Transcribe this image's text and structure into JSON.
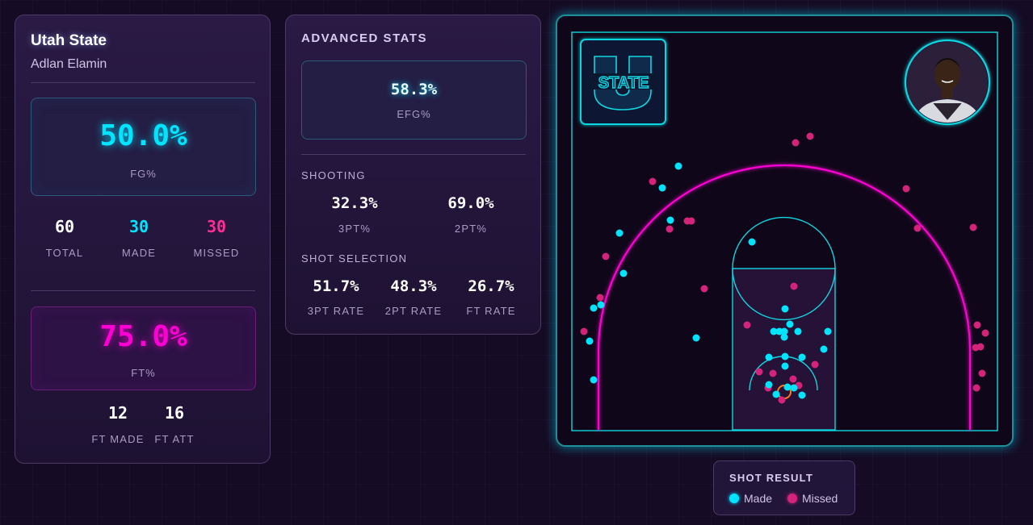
{
  "team": "Utah State",
  "player": "Adlan Elamin",
  "fg": {
    "value": "50.0%",
    "label": "FG%"
  },
  "totals": [
    {
      "value": "60",
      "label": "TOTAL",
      "color": "#ffffff"
    },
    {
      "value": "30",
      "label": "MADE",
      "color": "#00e5ff"
    },
    {
      "value": "30",
      "label": "MISSED",
      "color": "#ff2d95"
    }
  ],
  "ft": {
    "value": "75.0%",
    "label": "FT%"
  },
  "ft_counts": [
    {
      "value": "12",
      "label": "FT MADE"
    },
    {
      "value": "16",
      "label": "FT ATT"
    }
  ],
  "advanced": {
    "title": "ADVANCED STATS",
    "efg": {
      "value": "58.3%",
      "label": "EFG%"
    },
    "shooting_title": "SHOOTING",
    "shooting": [
      {
        "value": "32.3%",
        "label": "3PT%"
      },
      {
        "value": "69.0%",
        "label": "2PT%"
      }
    ],
    "selection_title": "SHOT SELECTION",
    "selection": [
      {
        "value": "51.7%",
        "label": "3PT RATE"
      },
      {
        "value": "48.3%",
        "label": "2PT RATE"
      },
      {
        "value": "26.7%",
        "label": "FT RATE"
      }
    ]
  },
  "court": {
    "logo": {
      "icon": "utah-state-logo",
      "text": "STATE"
    },
    "avatar_icon": "player-headshot"
  },
  "legend": {
    "title": "SHOT RESULT",
    "items": [
      {
        "label": "Made",
        "color": "#00e5ff"
      },
      {
        "label": "Missed",
        "color": "#d4237a"
      }
    ]
  },
  "colors": {
    "made": "#00e5ff",
    "missed": "#d4237a",
    "accent_magenta": "#ff00d4",
    "court_line": "#11d5e0"
  }
}
